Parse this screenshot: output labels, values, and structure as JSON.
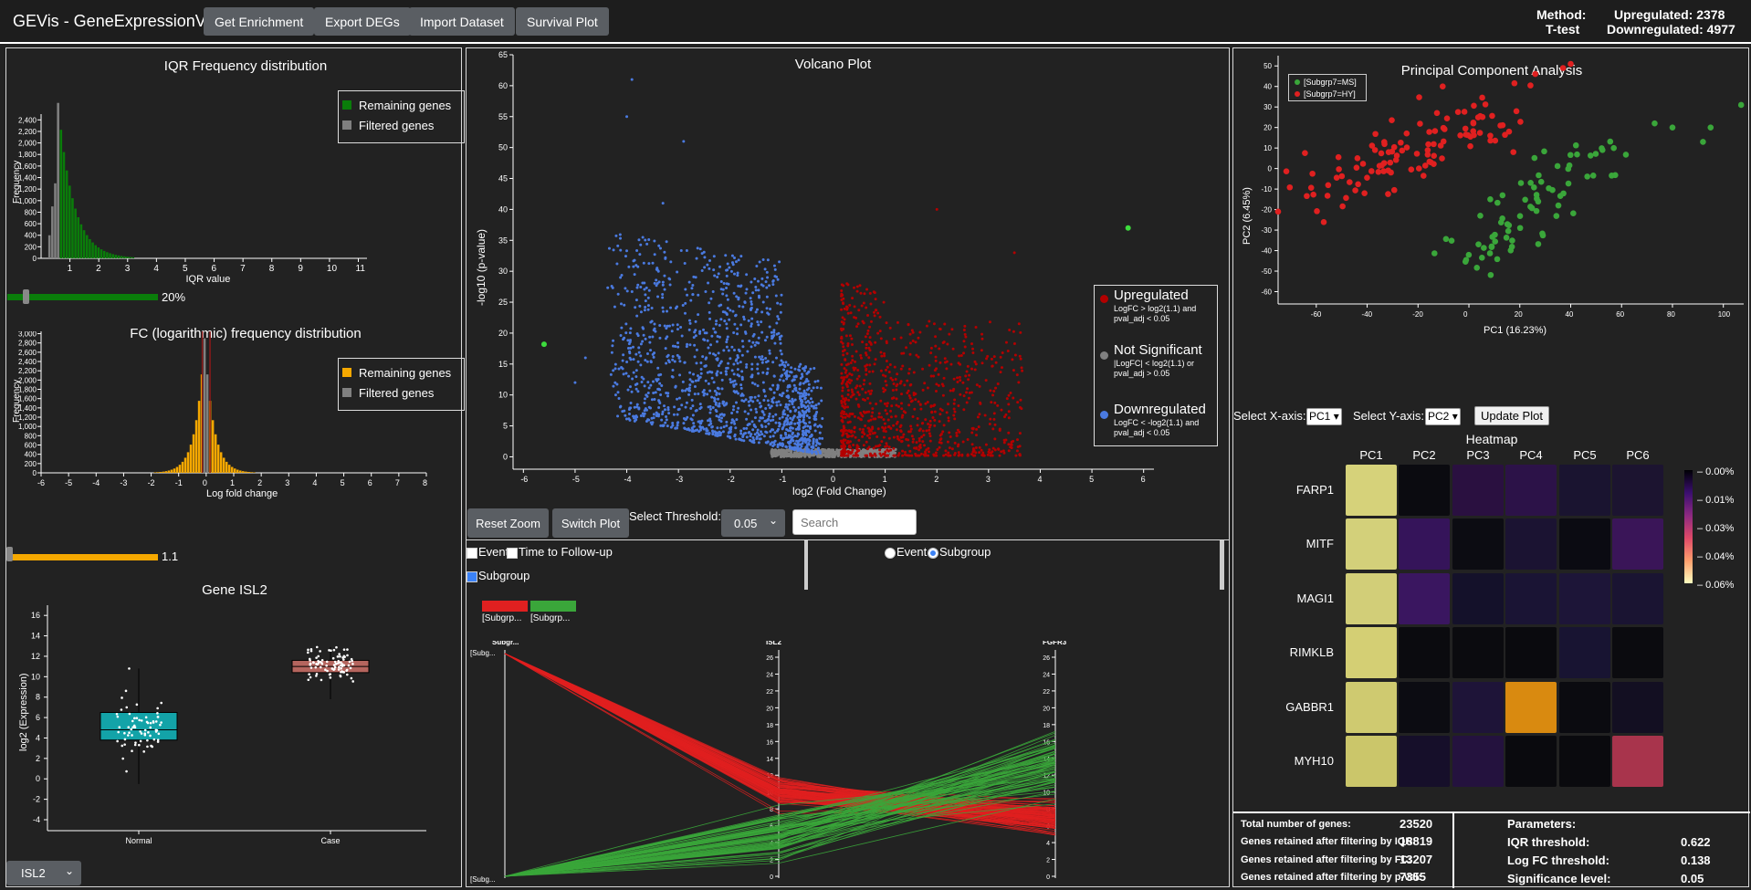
{
  "topbar": {
    "title": "GEVis - GeneExpressionVIS",
    "buttons": [
      "Get Enrichment",
      "Export DEGs",
      "Import Dataset",
      "Survival Plot"
    ],
    "method_label": "Method:",
    "method_value": "T-test",
    "upregulated": "Upregulated: 2378",
    "downregulated": "Downregulated: 4977"
  },
  "iqr": {
    "title": "IQR Frequency distribution",
    "xlabel": "IQR value",
    "ylabel": "Frequency",
    "legend": [
      "Remaining genes",
      "Filtered genes"
    ],
    "colors": {
      "remaining": "#0a7d0a",
      "filtered": "#808080"
    },
    "slider_value": "20%"
  },
  "fc": {
    "title": "FC (logarithmic) frequency distribution",
    "xlabel": "Log fold change",
    "ylabel": "Frequency",
    "legend": [
      "Remaining genes",
      "Filtered genes"
    ],
    "colors": {
      "remaining": "#f5a800",
      "filtered": "#808080"
    },
    "slider_value": "1.1"
  },
  "box": {
    "title": "Gene ISL2",
    "ylabel": "log2 (Expression)",
    "groups": [
      "Normal",
      "Case"
    ],
    "gene_select": "ISL2"
  },
  "volcano": {
    "title": "Volcano Plot",
    "xlabel": "log2 (Fold Change)",
    "ylabel": "-log10 (p-value)",
    "legend": [
      {
        "label": "Upregulated",
        "desc1": "LogFC > log2(1.1) and",
        "desc2": "pval_adj < 0.05",
        "color": "#b30000"
      },
      {
        "label": "Not Significant",
        "desc1": "|LogFC| < log2(1.1) or",
        "desc2": "pval_adj > 0.05",
        "color": "#808080"
      },
      {
        "label": "Downregulated",
        "desc1": "LogFC < -log2(1.1) and",
        "desc2": "pval_adj < 0.05",
        "color": "#4a7ae0"
      }
    ],
    "reset_zoom": "Reset Zoom",
    "switch_plot": "Switch Plot",
    "threshold_label": "Select Threshold:",
    "threshold_value": "0.05",
    "search_placeholder": "Search"
  },
  "parallel": {
    "checks": [
      "Event",
      "Time to Follow-up",
      "Subgroup"
    ],
    "radios": [
      "Event",
      "Subgroup"
    ],
    "legend": [
      "[Subgrp...",
      "[Subgrp..."
    ],
    "axes": [
      "Subgr...",
      "ISL2",
      "FGFR3"
    ],
    "cat_labels": [
      "[Subg...",
      "[Subg..."
    ]
  },
  "pca": {
    "title": "Principal Component Analysis",
    "xlabel": "PC1 (16.23%)",
    "ylabel": "PC2 (6.45%)",
    "legend": [
      "[Subgrp7=MS]",
      "[Subgrp7=HY]"
    ],
    "colors": {
      "ms": "#3aa63a",
      "hy": "#e02020"
    },
    "x_axis_label": "Select X-axis:",
    "x_value": "PC1",
    "y_axis_label": "Select Y-axis:",
    "y_value": "PC2",
    "update_button": "Update Plot"
  },
  "heatmap": {
    "title": "Heatmap",
    "columns": [
      "PC1",
      "PC2",
      "PC3",
      "PC4",
      "PC5",
      "PC6"
    ],
    "rows": [
      "FARP1",
      "MITF",
      "MAGI1",
      "RIMKLB",
      "GABBR1",
      "MYH10"
    ],
    "colorbar": [
      "0.00%",
      "0.01%",
      "0.03%",
      "0.04%",
      "0.06%"
    ],
    "cells": [
      [
        "#d6d27a",
        "#0b0b10",
        "#2a1040",
        "#2c1248",
        "#1a1430",
        "#1c1430"
      ],
      [
        "#d3d07a",
        "#35145a",
        "#0c0c12",
        "#1b1332",
        "#0b0b12",
        "#3a1558"
      ],
      [
        "#d2ce78",
        "#3a1660",
        "#14112a",
        "#1a1434",
        "#1d1538",
        "#1a1432"
      ],
      [
        "#d4cf74",
        "#0b0b0f",
        "#0b0b0f",
        "#0a0a0e",
        "#181432",
        "#0b0b0f"
      ],
      [
        "#cfca70",
        "#0c0c12",
        "#1e1438",
        "#d98a10",
        "#0b0b10",
        "#130f22"
      ],
      [
        "#cbc66a",
        "#160f2a",
        "#24123e",
        "#0a0a0e",
        "#0a0a0e",
        "#a8344c"
      ]
    ]
  },
  "summary": {
    "labels": [
      "Total number of genes:",
      "Genes retained after filtering by IQR:",
      "Genes retained after filtering by FC:",
      "Genes retained after filtering by p-val:"
    ],
    "values": [
      "23520",
      "18819",
      "13207",
      "7355"
    ],
    "params_title": "Parameters:",
    "param_labels": [
      "IQR threshold:",
      "Log FC threshold:",
      "Significance level:"
    ],
    "param_values": [
      "0.622",
      "0.138",
      "0.05"
    ]
  }
}
